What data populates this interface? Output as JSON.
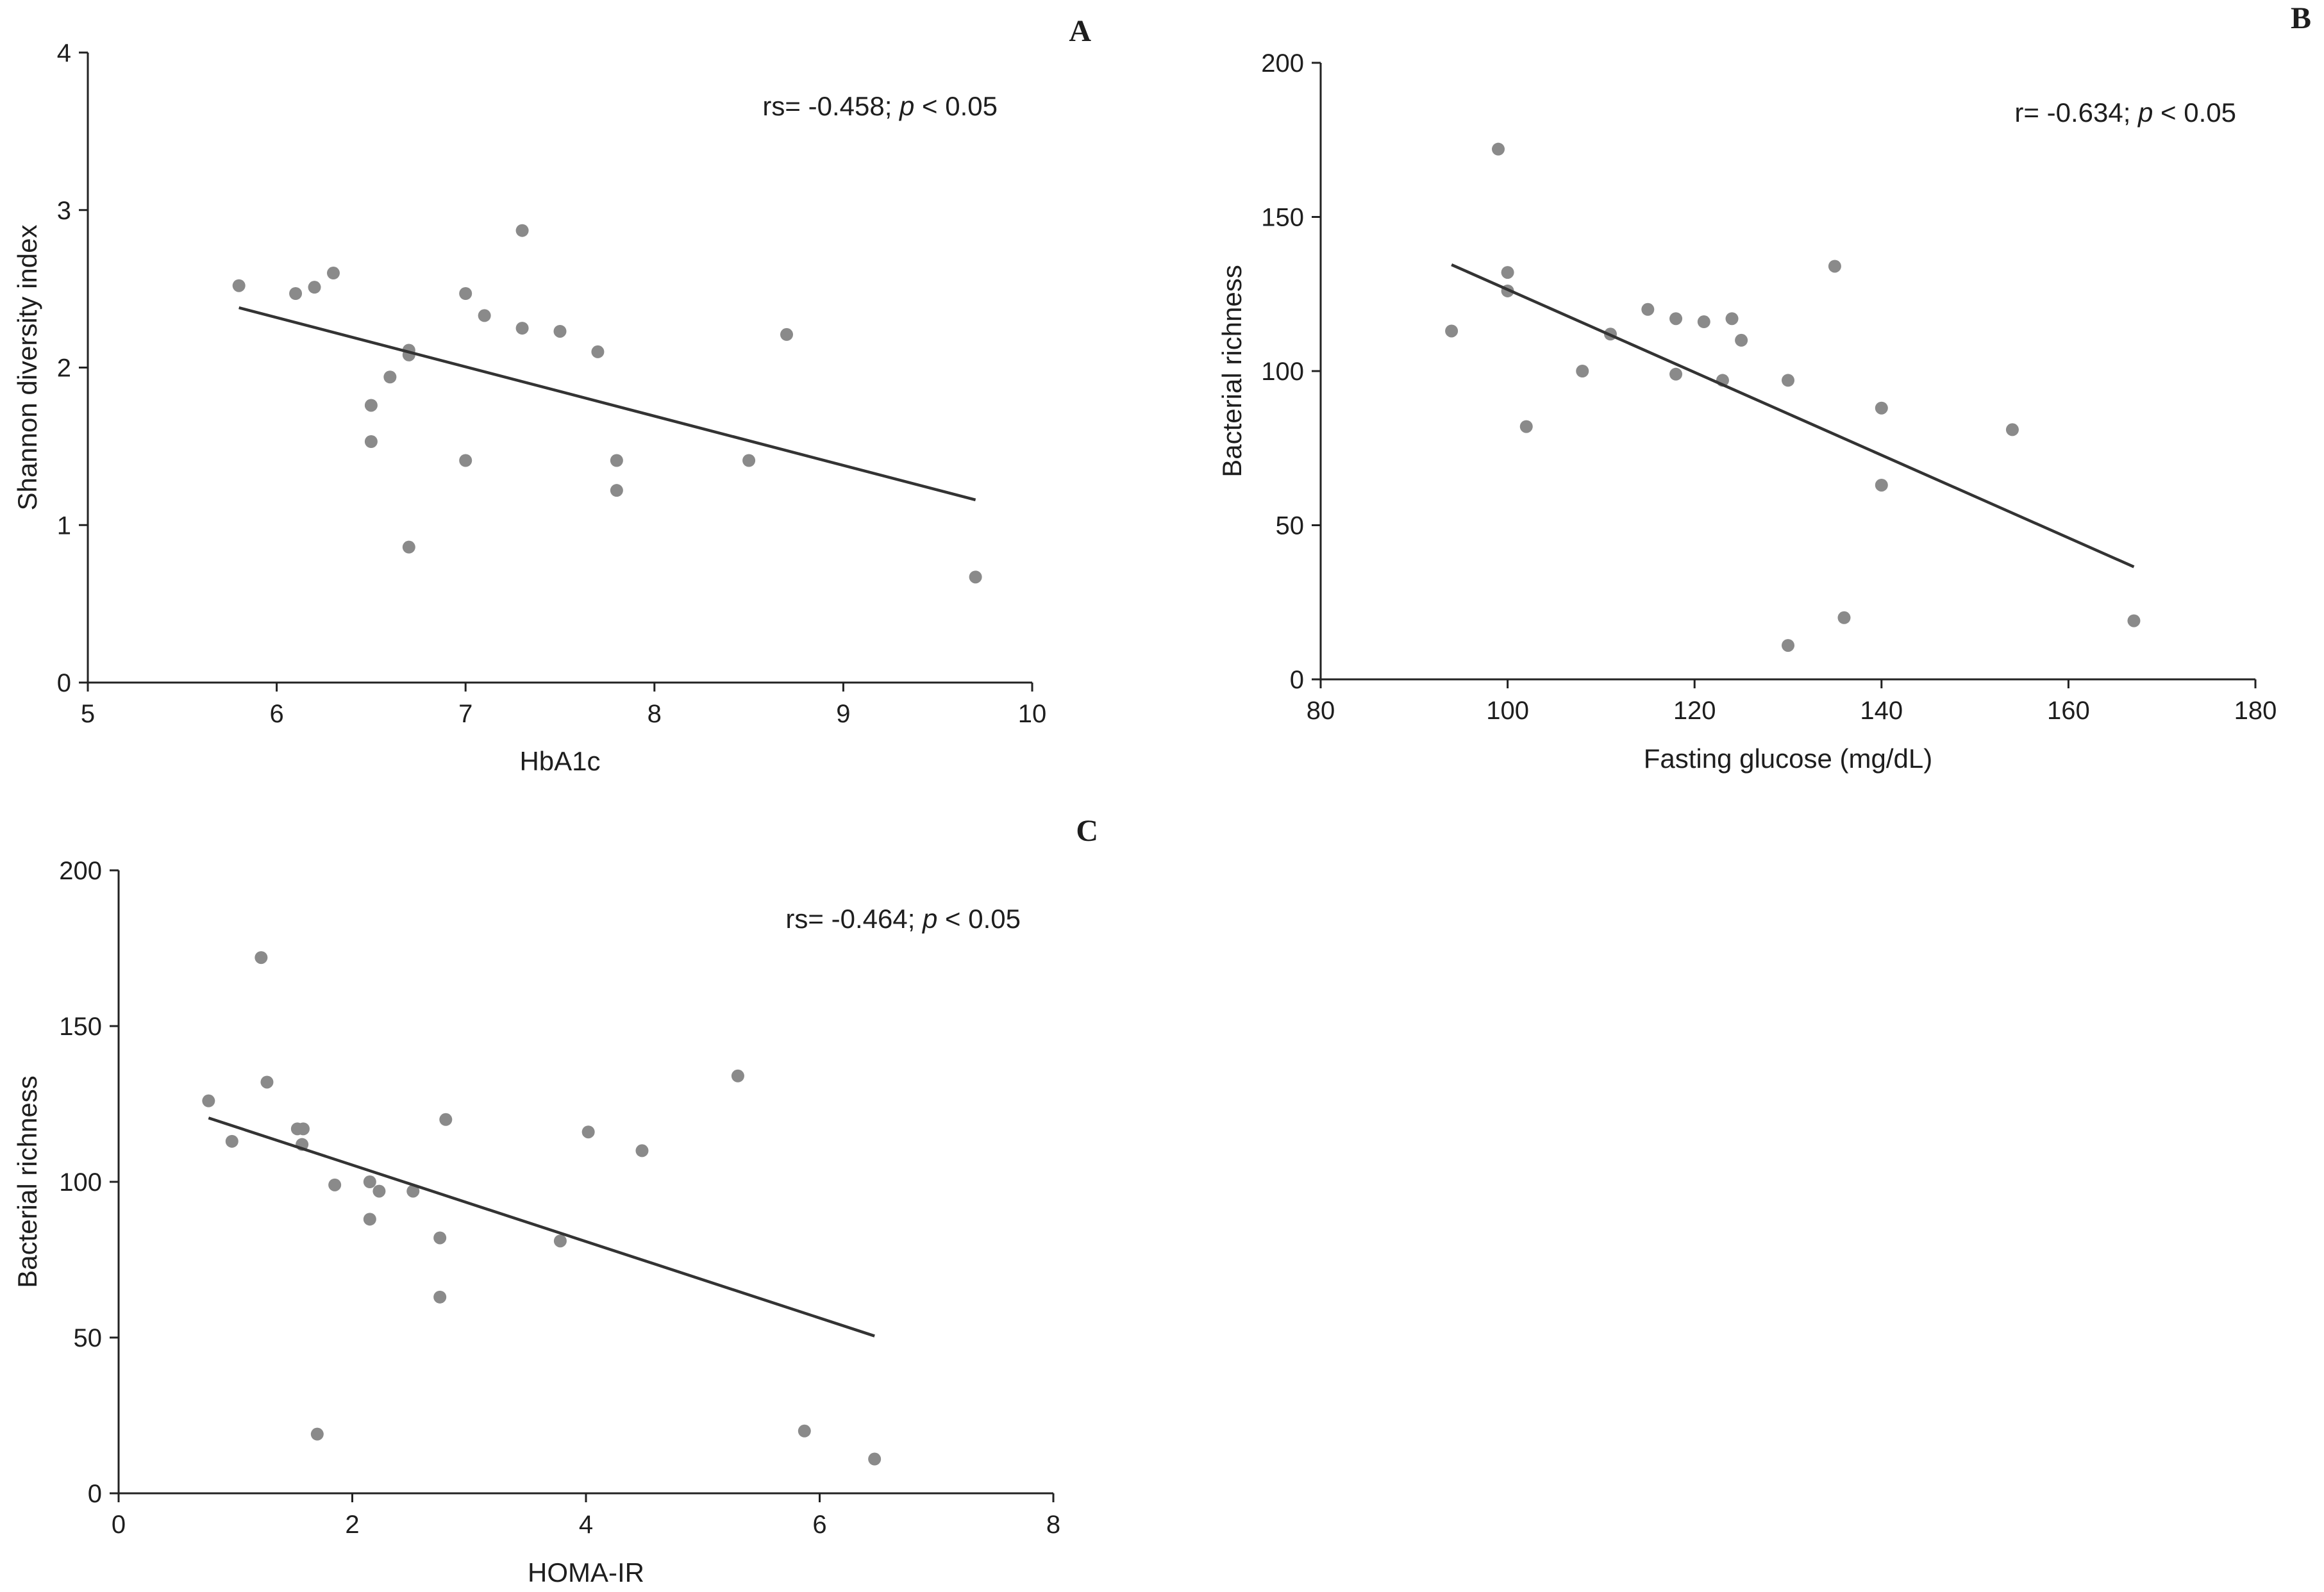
{
  "chart_data": [
    {
      "type": "scatter",
      "panel_label": "A",
      "xlabel": "HbA1c",
      "ylabel": "Shannon diversity index",
      "xlim": [
        5,
        10
      ],
      "ylim": [
        0,
        4
      ],
      "xticks": [
        "5",
        "6",
        "7",
        "8",
        "9",
        "10"
      ],
      "yticks": [
        "0",
        "1",
        "2",
        "3",
        "4"
      ],
      "annotation": {
        "prefix": "rs= -0.458; ",
        "italic": "p",
        "suffix": " < 0.05"
      },
      "points": [
        {
          "x": 5.8,
          "y": 2.52
        },
        {
          "x": 6.1,
          "y": 2.47
        },
        {
          "x": 6.2,
          "y": 2.51
        },
        {
          "x": 6.3,
          "y": 2.6
        },
        {
          "x": 6.5,
          "y": 1.76
        },
        {
          "x": 6.5,
          "y": 1.53
        },
        {
          "x": 6.6,
          "y": 1.94
        },
        {
          "x": 6.7,
          "y": 2.11
        },
        {
          "x": 6.7,
          "y": 2.08
        },
        {
          "x": 6.7,
          "y": 0.86
        },
        {
          "x": 7.0,
          "y": 2.47
        },
        {
          "x": 7.0,
          "y": 1.41
        },
        {
          "x": 7.1,
          "y": 2.33
        },
        {
          "x": 7.3,
          "y": 2.87
        },
        {
          "x": 7.3,
          "y": 2.25
        },
        {
          "x": 7.5,
          "y": 2.23
        },
        {
          "x": 7.7,
          "y": 2.1
        },
        {
          "x": 7.8,
          "y": 1.41
        },
        {
          "x": 7.8,
          "y": 1.22
        },
        {
          "x": 8.5,
          "y": 1.41
        },
        {
          "x": 8.7,
          "y": 2.21
        },
        {
          "x": 9.7,
          "y": 0.67
        }
      ],
      "fit": {
        "x": [
          5.8,
          9.7
        ],
        "y": [
          2.38,
          1.16
        ]
      }
    },
    {
      "type": "scatter",
      "panel_label": "B",
      "xlabel": "Fasting glucose (mg/dL)",
      "ylabel": "Bacterial richness",
      "xlim": [
        80,
        180
      ],
      "ylim": [
        0,
        200
      ],
      "xticks": [
        "80",
        "100",
        "120",
        "140",
        "160",
        "180"
      ],
      "yticks": [
        "0",
        "50",
        "100",
        "150",
        "200"
      ],
      "annotation": {
        "prefix": "r= -0.634; ",
        "italic": "p",
        "suffix": " < 0.05"
      },
      "points": [
        {
          "x": 94,
          "y": 113
        },
        {
          "x": 99,
          "y": 172
        },
        {
          "x": 100,
          "y": 132
        },
        {
          "x": 100,
          "y": 126
        },
        {
          "x": 102,
          "y": 82
        },
        {
          "x": 108,
          "y": 100
        },
        {
          "x": 111,
          "y": 112
        },
        {
          "x": 115,
          "y": 120
        },
        {
          "x": 118,
          "y": 117
        },
        {
          "x": 118,
          "y": 99
        },
        {
          "x": 121,
          "y": 116
        },
        {
          "x": 123,
          "y": 97
        },
        {
          "x": 124,
          "y": 117
        },
        {
          "x": 125,
          "y": 110
        },
        {
          "x": 130,
          "y": 97
        },
        {
          "x": 130,
          "y": 11
        },
        {
          "x": 135,
          "y": 134
        },
        {
          "x": 136,
          "y": 20
        },
        {
          "x": 140,
          "y": 88
        },
        {
          "x": 140,
          "y": 63
        },
        {
          "x": 154,
          "y": 81
        },
        {
          "x": 167,
          "y": 19
        }
      ],
      "fit": {
        "x": [
          94,
          167
        ],
        "y": [
          134.5,
          36.5
        ]
      }
    },
    {
      "type": "scatter",
      "panel_label": "C",
      "xlabel": "HOMA-IR",
      "ylabel": "Bacterial richness",
      "xlim": [
        0,
        8
      ],
      "ylim": [
        0,
        200
      ],
      "xticks": [
        "0",
        "2",
        "4",
        "6",
        "8"
      ],
      "yticks": [
        "0",
        "50",
        "100",
        "150",
        "200"
      ],
      "annotation": {
        "prefix": "rs= -0.464; ",
        "italic": "p",
        "suffix": " < 0.05"
      },
      "points": [
        {
          "x": 0.77,
          "y": 126
        },
        {
          "x": 0.97,
          "y": 113
        },
        {
          "x": 1.22,
          "y": 172
        },
        {
          "x": 1.27,
          "y": 132
        },
        {
          "x": 1.53,
          "y": 117
        },
        {
          "x": 1.58,
          "y": 117
        },
        {
          "x": 1.57,
          "y": 112
        },
        {
          "x": 1.7,
          "y": 19
        },
        {
          "x": 1.85,
          "y": 99
        },
        {
          "x": 2.15,
          "y": 100
        },
        {
          "x": 2.15,
          "y": 88
        },
        {
          "x": 2.23,
          "y": 97
        },
        {
          "x": 2.52,
          "y": 97
        },
        {
          "x": 2.75,
          "y": 82
        },
        {
          "x": 2.75,
          "y": 63
        },
        {
          "x": 2.8,
          "y": 120
        },
        {
          "x": 3.78,
          "y": 81
        },
        {
          "x": 4.02,
          "y": 116
        },
        {
          "x": 4.48,
          "y": 110
        },
        {
          "x": 5.3,
          "y": 134
        },
        {
          "x": 5.87,
          "y": 20
        },
        {
          "x": 6.47,
          "y": 11
        }
      ],
      "fit": {
        "x": [
          0.77,
          6.47
        ],
        "y": [
          120.5,
          50.5
        ]
      }
    }
  ],
  "colors": {
    "point": "#8a8a8a",
    "line": "#333333",
    "axis": "#222222"
  }
}
